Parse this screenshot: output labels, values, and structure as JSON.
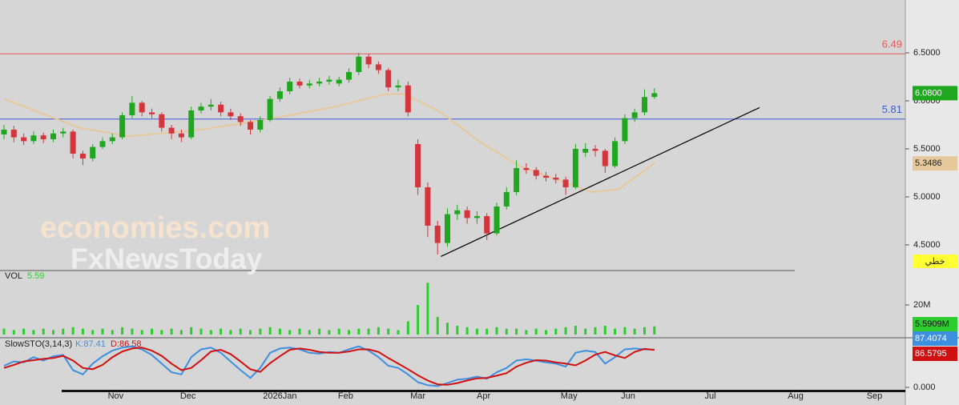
{
  "chart_data": {
    "type": "candlestick",
    "xlim": [
      -1.22,
      274.39
    ],
    "xticks": [
      {
        "value": 34,
        "label": "Nov"
      },
      {
        "value": 56,
        "label": "Dec"
      },
      {
        "value": 84,
        "label": "2026Jan"
      },
      {
        "value": 104,
        "label": "Feb"
      },
      {
        "value": 126,
        "label": "Mar"
      },
      {
        "value": 146,
        "label": "Apr"
      },
      {
        "value": 172,
        "label": "May"
      },
      {
        "value": 190,
        "label": "Jun"
      },
      {
        "value": 215,
        "label": "Jul"
      },
      {
        "value": 241,
        "label": "Aug"
      },
      {
        "value": 265,
        "label": "Sep"
      }
    ],
    "ylim": [
      4.233,
      7.05
    ],
    "yticks": [
      {
        "value": 6.5,
        "label": "6.5000"
      },
      {
        "value": 6.0,
        "label": "6.0000"
      },
      {
        "value": 5.5,
        "label": "5.5000"
      },
      {
        "value": 5.0,
        "label": "5.0000"
      },
      {
        "value": 4.5,
        "label": "4.5000"
      }
    ],
    "up_color": "#1fa81f",
    "down_color": "#d4343c",
    "x": [
      0,
      3,
      6,
      9,
      12,
      15,
      18,
      21,
      24,
      27,
      30,
      33,
      36,
      39,
      42,
      45,
      48,
      51,
      54,
      57,
      60,
      63,
      66,
      69,
      72,
      75,
      78,
      81,
      84,
      87,
      90,
      93,
      96,
      99,
      102,
      105,
      108,
      111,
      114,
      117,
      120,
      123,
      126,
      129,
      132,
      135,
      138,
      141,
      144,
      147,
      150,
      153,
      156,
      159,
      162,
      165,
      168,
      171,
      174,
      177,
      180,
      183,
      186,
      189,
      192,
      195,
      198
    ],
    "open": [
      5.65,
      5.7,
      5.62,
      5.58,
      5.64,
      5.6,
      5.66,
      5.68,
      5.45,
      5.4,
      5.52,
      5.58,
      5.62,
      5.85,
      5.98,
      5.88,
      5.86,
      5.72,
      5.66,
      5.62,
      5.9,
      5.94,
      5.96,
      5.88,
      5.84,
      5.78,
      5.7,
      5.8,
      6.02,
      6.1,
      6.2,
      6.16,
      6.18,
      6.2,
      6.18,
      6.22,
      6.3,
      6.46,
      6.38,
      6.32,
      6.14,
      6.16,
      5.55,
      5.1,
      4.7,
      4.52,
      4.82,
      4.86,
      4.78,
      4.8,
      4.62,
      4.9,
      5.05,
      5.3,
      5.28,
      5.22,
      5.2,
      5.18,
      5.1,
      5.46,
      5.5,
      5.48,
      5.32,
      5.58,
      5.82,
      5.88,
      6.04
    ],
    "high": [
      5.75,
      5.74,
      5.66,
      5.68,
      5.67,
      5.7,
      5.72,
      5.7,
      5.48,
      5.55,
      5.62,
      5.66,
      5.88,
      6.05,
      6.0,
      5.92,
      5.88,
      5.75,
      5.7,
      5.94,
      5.98,
      6.02,
      5.99,
      5.92,
      5.87,
      5.8,
      5.84,
      6.05,
      6.14,
      6.24,
      6.23,
      6.22,
      6.24,
      6.26,
      6.25,
      6.34,
      6.5,
      6.49,
      6.41,
      6.34,
      6.22,
      6.2,
      5.6,
      5.15,
      4.75,
      4.88,
      4.92,
      4.9,
      4.85,
      4.83,
      4.94,
      5.1,
      5.38,
      5.35,
      5.31,
      5.26,
      5.24,
      5.21,
      5.55,
      5.56,
      5.54,
      5.5,
      5.62,
      5.86,
      5.92,
      6.12,
      6.13
    ],
    "low": [
      5.6,
      5.57,
      5.54,
      5.55,
      5.56,
      5.57,
      5.62,
      5.4,
      5.33,
      5.37,
      5.5,
      5.55,
      5.6,
      5.82,
      5.84,
      5.82,
      5.68,
      5.6,
      5.57,
      5.6,
      5.87,
      5.9,
      5.84,
      5.8,
      5.74,
      5.65,
      5.67,
      5.78,
      5.99,
      6.07,
      6.13,
      6.13,
      6.15,
      6.17,
      6.15,
      6.19,
      6.27,
      6.34,
      6.28,
      6.1,
      6.1,
      5.84,
      5.02,
      4.58,
      4.4,
      4.48,
      4.76,
      4.72,
      4.72,
      4.55,
      4.6,
      4.87,
      5.02,
      5.24,
      5.18,
      5.16,
      5.14,
      5.02,
      5.08,
      5.42,
      5.42,
      5.25,
      5.3,
      5.55,
      5.78,
      5.85,
      6.02
    ],
    "close": [
      5.7,
      5.62,
      5.58,
      5.64,
      5.6,
      5.66,
      5.68,
      5.45,
      5.4,
      5.52,
      5.58,
      5.62,
      5.85,
      5.98,
      5.88,
      5.86,
      5.72,
      5.66,
      5.62,
      5.9,
      5.94,
      5.96,
      5.88,
      5.84,
      5.78,
      5.7,
      5.8,
      6.02,
      6.1,
      6.2,
      6.16,
      6.18,
      6.2,
      6.22,
      6.22,
      6.3,
      6.46,
      6.38,
      6.32,
      6.14,
      6.16,
      5.88,
      5.1,
      4.7,
      4.52,
      4.82,
      4.86,
      4.78,
      4.8,
      4.62,
      4.9,
      5.05,
      5.3,
      5.28,
      5.22,
      5.2,
      5.18,
      5.1,
      5.5,
      5.5,
      5.48,
      5.32,
      5.58,
      5.82,
      5.88,
      6.04,
      6.08
    ],
    "last_close_label": "6.0800",
    "moving_average": {
      "color": "#e6c99a",
      "x": [
        0,
        23,
        38,
        60,
        79,
        101,
        116,
        122,
        133,
        145,
        157,
        169,
        179,
        187,
        198
      ],
      "values": [
        6.02,
        5.72,
        5.63,
        5.7,
        5.8,
        5.94,
        6.07,
        6.07,
        5.88,
        5.57,
        5.32,
        5.17,
        5.05,
        5.08,
        5.3486
      ],
      "last_label": "5.3486"
    },
    "trendline": {
      "color": "#000000",
      "x": [
        133,
        230
      ],
      "values": [
        4.38,
        5.93
      ]
    },
    "hlines": [
      {
        "value": 6.49,
        "color": "#e05a5a"
      },
      {
        "value": 5.81,
        "color": "#3d5bd9"
      }
    ],
    "mode_label": "خطي",
    "watermarks": [
      "economies.com",
      "FxNewsToday"
    ],
    "volume": {
      "label": "VOL",
      "value_label": "5.59",
      "color": "#2ecc2e",
      "ylim": [
        0,
        42.2
      ],
      "yticks": [
        {
          "value": 20,
          "label": "20M"
        }
      ],
      "values": [
        4,
        3,
        4,
        3,
        4,
        3,
        4,
        5,
        4,
        3,
        4,
        3,
        5,
        4,
        3,
        4,
        3,
        4,
        3,
        5,
        4,
        3,
        4,
        3,
        4,
        3,
        4,
        5,
        4,
        3,
        4,
        3,
        4,
        3,
        4,
        3,
        4,
        4,
        5,
        4,
        3,
        9,
        20,
        35,
        12,
        8,
        6,
        5,
        4,
        4,
        5,
        4,
        4,
        3,
        4,
        3,
        4,
        5,
        6,
        4,
        5,
        6,
        4,
        5,
        4,
        5,
        5.5909
      ],
      "last_label": "5.5909M"
    },
    "stochastic": {
      "label": "SlowSTO(3,14,3)",
      "k_label": "K:87.41",
      "d_label": "D:86.58",
      "ylim": [
        0,
        100
      ],
      "yticks": [
        {
          "value": 0,
          "label": "0.000"
        }
      ],
      "k": {
        "color": "#3d8fe0",
        "values": [
          50,
          60,
          58,
          70,
          62,
          72,
          75,
          40,
          30,
          55,
          72,
          85,
          92,
          95,
          88,
          75,
          55,
          35,
          30,
          70,
          88,
          92,
          80,
          60,
          40,
          22,
          45,
          80,
          90,
          92,
          88,
          80,
          78,
          82,
          80,
          88,
          95,
          85,
          70,
          50,
          45,
          30,
          12,
          5,
          3,
          10,
          18,
          20,
          25,
          20,
          35,
          45,
          62,
          65,
          62,
          58,
          55,
          48,
          80,
          85,
          82,
          55,
          70,
          88,
          90,
          88,
          87.4074
        ],
        "last_label": "87.4074"
      },
      "d": {
        "color": "#d01010",
        "values": [
          45,
          52,
          60,
          63,
          66,
          68,
          73,
          62,
          45,
          42,
          52,
          70,
          83,
          90,
          92,
          85,
          73,
          55,
          40,
          45,
          63,
          83,
          87,
          77,
          60,
          42,
          36,
          56,
          72,
          87,
          90,
          87,
          82,
          80,
          80,
          83,
          88,
          88,
          82,
          68,
          55,
          42,
          28,
          16,
          7,
          6,
          10,
          16,
          21,
          22,
          27,
          33,
          48,
          57,
          63,
          62,
          58,
          55,
          51,
          62,
          76,
          82,
          74,
          68,
          82,
          89,
          86.5795
        ],
        "last_label": "86.5795"
      }
    }
  }
}
